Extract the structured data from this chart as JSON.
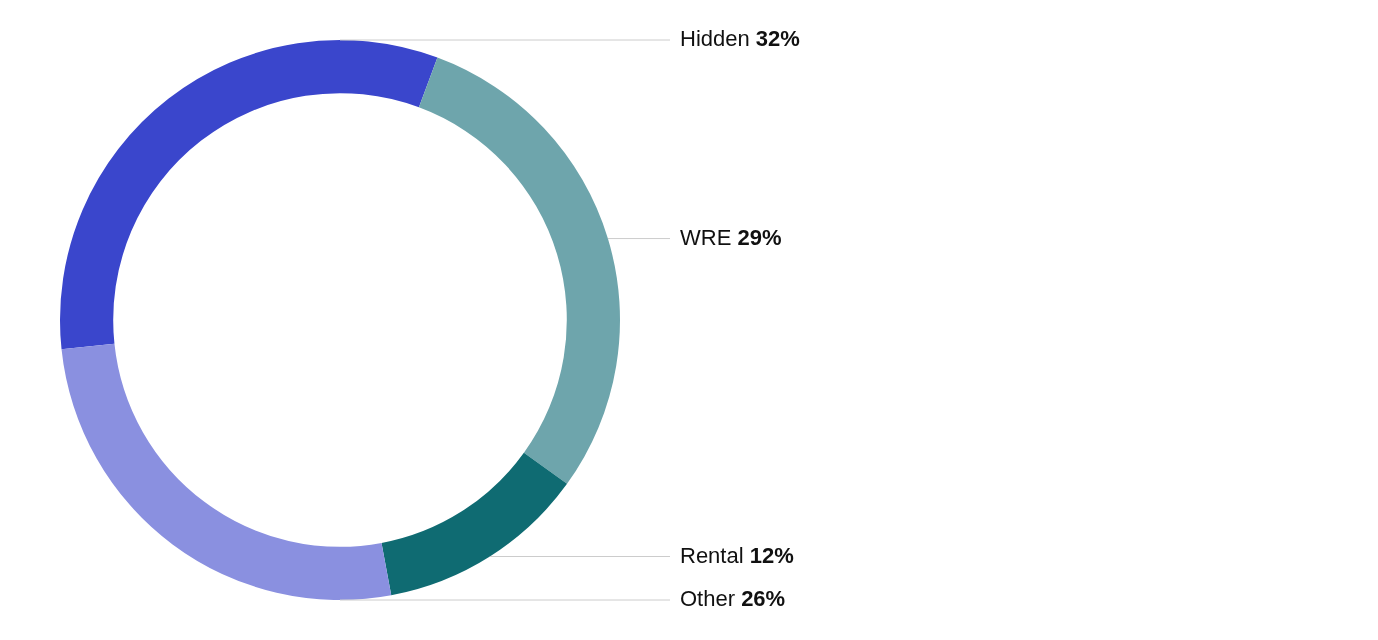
{
  "chart_data": {
    "type": "donut",
    "categories": [
      "Hidden",
      "WRE",
      "Rental",
      "Other"
    ],
    "values": [
      32,
      29,
      12,
      26
    ],
    "value_labels": [
      "32%",
      "29%",
      "12%",
      "26%"
    ],
    "colors": [
      "#3a46cc",
      "#6ea5ac",
      "#0f6b72",
      "#8a90e0"
    ],
    "legend": false
  }
}
